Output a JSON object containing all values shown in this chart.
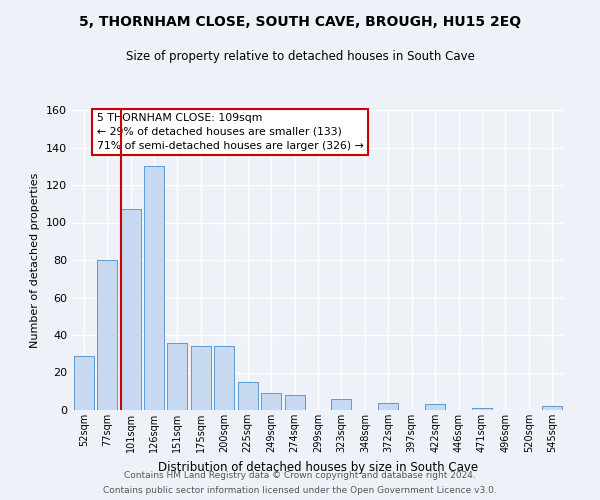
{
  "title": "5, THORNHAM CLOSE, SOUTH CAVE, BROUGH, HU15 2EQ",
  "subtitle": "Size of property relative to detached houses in South Cave",
  "xlabel": "Distribution of detached houses by size in South Cave",
  "ylabel": "Number of detached properties",
  "bar_values": [
    29,
    80,
    107,
    130,
    36,
    34,
    34,
    15,
    9,
    8,
    0,
    6,
    0,
    4,
    0,
    3,
    0,
    1,
    0,
    0,
    2
  ],
  "bin_labels": [
    "52sqm",
    "77sqm",
    "101sqm",
    "126sqm",
    "151sqm",
    "175sqm",
    "200sqm",
    "225sqm",
    "249sqm",
    "274sqm",
    "299sqm",
    "323sqm",
    "348sqm",
    "372sqm",
    "397sqm",
    "422sqm",
    "446sqm",
    "471sqm",
    "496sqm",
    "520sqm",
    "545sqm"
  ],
  "bar_color": "#c6d9f0",
  "bar_edge_color": "#5b9bd5",
  "vline_color": "#cc0000",
  "annotation_line1": "5 THORNHAM CLOSE: 109sqm",
  "annotation_line2": "← 29% of detached houses are smaller (133)",
  "annotation_line3": "71% of semi-detached houses are larger (326) →",
  "annotation_box_edge": "#cc0000",
  "ylim": [
    0,
    160
  ],
  "yticks": [
    0,
    20,
    40,
    60,
    80,
    100,
    120,
    140,
    160
  ],
  "footer1": "Contains HM Land Registry data © Crown copyright and database right 2024.",
  "footer2": "Contains public sector information licensed under the Open Government Licence v3.0.",
  "background_color": "#eef2f8",
  "grid_color": "#ffffff"
}
